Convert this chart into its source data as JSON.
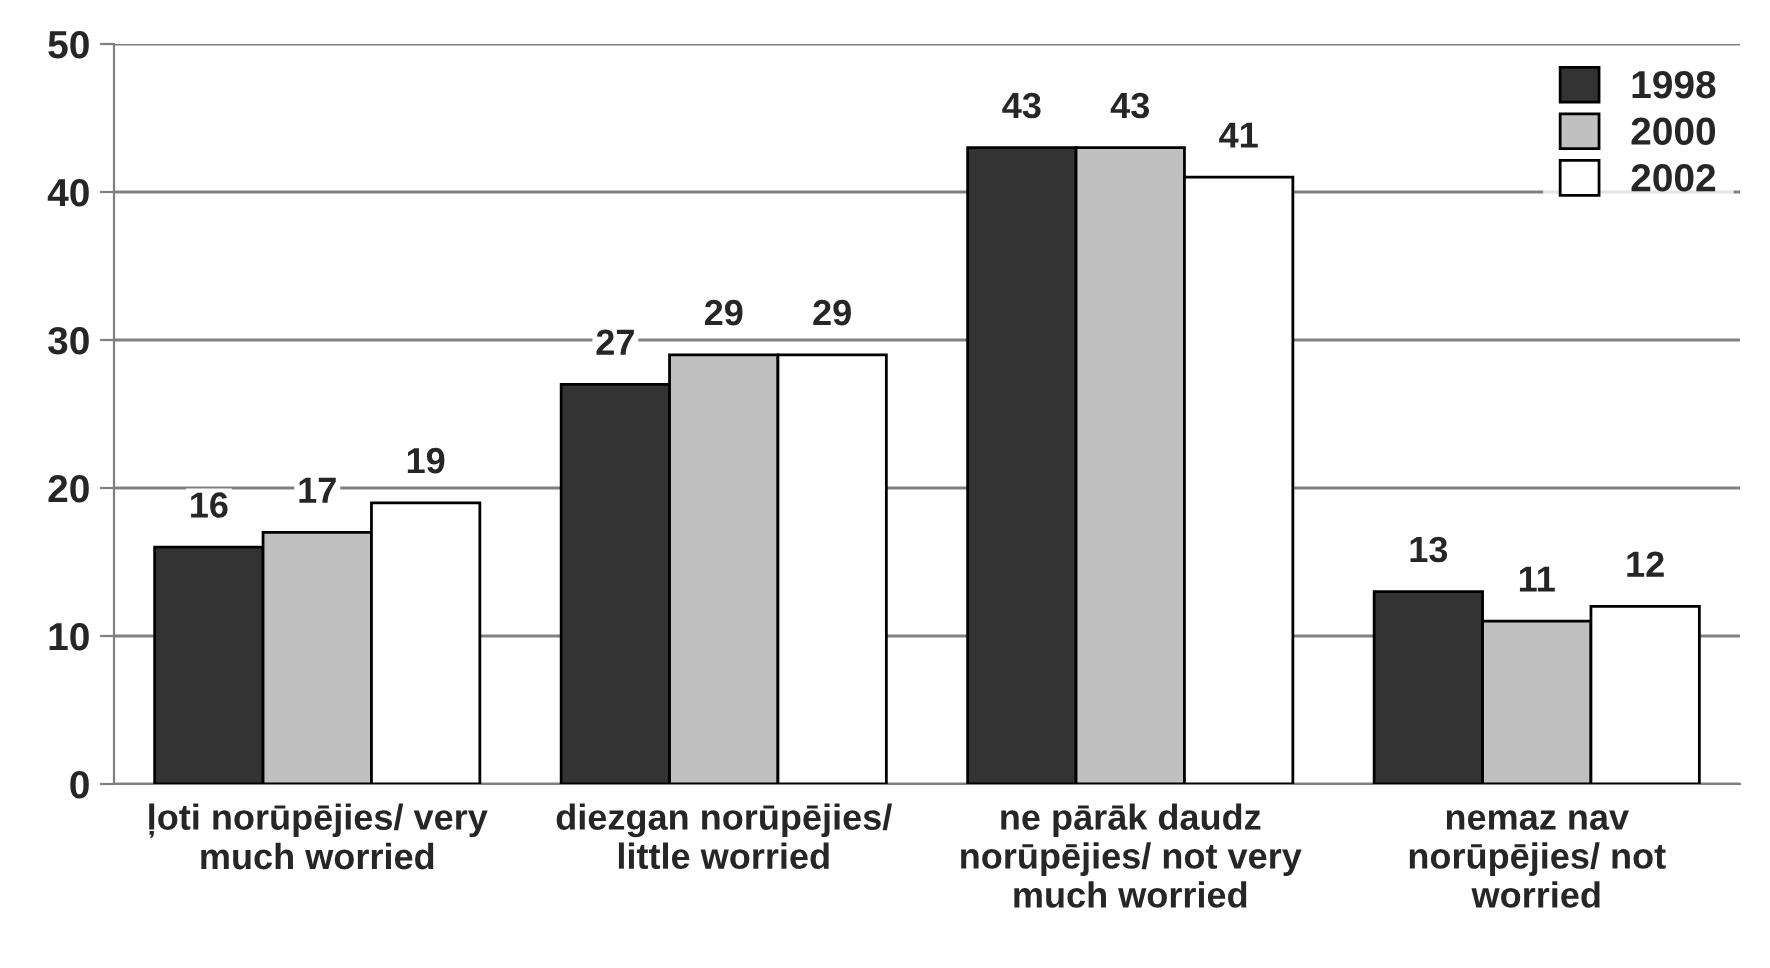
{
  "chart_data": {
    "type": "bar",
    "categories": [
      "ļoti norūpējies/ very\nmuch worried",
      "diezgan norūpējies/\nlittle worried",
      "ne pārāk daudz\nnorūpējies/ not very\nmuch worried",
      "nemaz nav\nnorūpējies/ not\nworried"
    ],
    "series": [
      {
        "name": "1998",
        "color": "#333333",
        "values": [
          16,
          27,
          43,
          13
        ]
      },
      {
        "name": "2000",
        "color": "#c0c0c0",
        "values": [
          17,
          29,
          43,
          11
        ]
      },
      {
        "name": "2002",
        "color": "#ffffff",
        "values": [
          19,
          29,
          41,
          12
        ]
      }
    ],
    "ylim": [
      0,
      50
    ],
    "yticks": [
      0,
      10,
      20,
      30,
      40,
      50
    ],
    "grid": "y",
    "legend": "top right",
    "data_labels": true
  }
}
